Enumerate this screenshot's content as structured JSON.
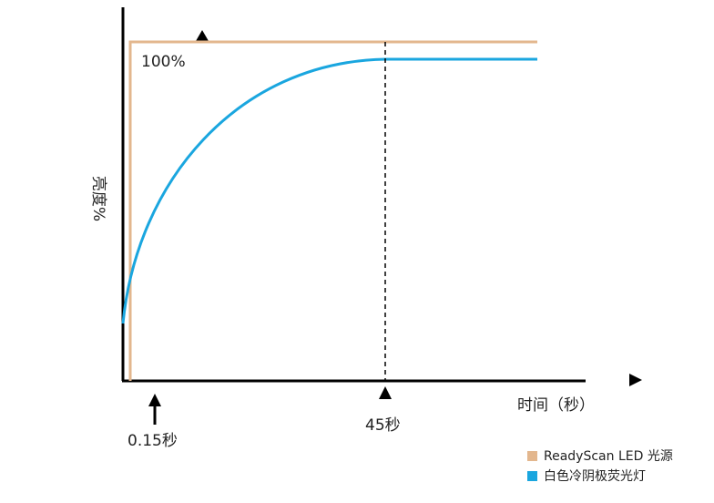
{
  "axes": {
    "y_label": "亮度%",
    "x_label": "时间（秒）"
  },
  "annotations": {
    "full": "100%",
    "led_start": "0.15秒",
    "ccfl_full": "45秒"
  },
  "legend": [
    {
      "name": "ReadyScan LED 光源",
      "color": "#e3b78e"
    },
    {
      "name": "白色冷阴极荧光灯",
      "color": "#1aa6df"
    }
  ]
}
